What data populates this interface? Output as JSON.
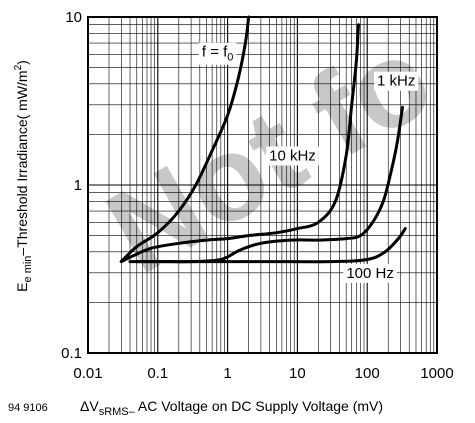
{
  "chart_data": {
    "type": "line",
    "xscale": "log",
    "yscale": "log",
    "xlim": [
      0.01,
      1000
    ],
    "ylim": [
      0.1,
      10
    ],
    "grid": true,
    "watermark_color": "#c8c8c8",
    "xlabel": "ΔVsRMS– AC Voltage on DC Supply Voltage (mV)",
    "xlabel_parts": {
      "pre": "ΔV",
      "sub": "sRMS–",
      "post": " AC Voltage on DC Supply Voltage (mV)"
    },
    "ylabel": "Ee min–Threshold Irradiance( mW/m2)",
    "ylabel_parts": {
      "pre": "E",
      "sub": "e min",
      "mid": "–Threshold Irradiance( mW/m",
      "sup": "2",
      "post": ")"
    },
    "figure_id": "94 9106",
    "watermark_text": "Not fo",
    "x_ticks": [
      {
        "value": 0.01,
        "label": "0.01"
      },
      {
        "value": 0.1,
        "label": "0.1"
      },
      {
        "value": 1,
        "label": "1"
      },
      {
        "value": 10,
        "label": "10"
      },
      {
        "value": 100,
        "label": "100"
      },
      {
        "value": 1000,
        "label": "1000"
      }
    ],
    "y_ticks": [
      {
        "value": 0.1,
        "label": "0.1"
      },
      {
        "value": 1,
        "label": "1"
      },
      {
        "value": 10,
        "label": "10"
      }
    ],
    "series": [
      {
        "name": "f = f0",
        "label_parts": {
          "pre": "f = f",
          "sub": "0"
        },
        "points": [
          [
            0.03,
            0.35
          ],
          [
            0.05,
            0.43
          ],
          [
            0.1,
            0.52
          ],
          [
            0.2,
            0.7
          ],
          [
            0.35,
            1.0
          ],
          [
            0.6,
            1.6
          ],
          [
            1.0,
            2.6
          ],
          [
            1.4,
            4.2
          ],
          [
            1.8,
            7.0
          ],
          [
            2.0,
            10
          ]
        ]
      },
      {
        "name": "10 kHz",
        "points": [
          [
            0.03,
            0.35
          ],
          [
            0.045,
            0.38
          ],
          [
            0.08,
            0.42
          ],
          [
            0.2,
            0.45
          ],
          [
            0.5,
            0.47
          ],
          [
            1.0,
            0.48
          ],
          [
            2.0,
            0.5
          ],
          [
            5.0,
            0.52
          ],
          [
            10,
            0.55
          ],
          [
            20,
            0.6
          ],
          [
            35,
            0.8
          ],
          [
            50,
            1.5
          ],
          [
            60,
            3.0
          ],
          [
            70,
            5.5
          ],
          [
            75,
            9.0
          ]
        ]
      },
      {
        "name": "1 kHz",
        "points": [
          [
            0.05,
            0.35
          ],
          [
            0.1,
            0.35
          ],
          [
            0.3,
            0.35
          ],
          [
            0.8,
            0.36
          ],
          [
            1.5,
            0.41
          ],
          [
            3.0,
            0.45
          ],
          [
            8.0,
            0.47
          ],
          [
            20,
            0.47
          ],
          [
            50,
            0.48
          ],
          [
            80,
            0.5
          ],
          [
            120,
            0.6
          ],
          [
            170,
            0.8
          ],
          [
            220,
            1.2
          ],
          [
            270,
            1.8
          ],
          [
            320,
            2.9
          ]
        ]
      },
      {
        "name": "100 Hz",
        "points": [
          [
            0.04,
            0.35
          ],
          [
            0.3,
            0.35
          ],
          [
            3.0,
            0.35
          ],
          [
            30,
            0.35
          ],
          [
            100,
            0.36
          ],
          [
            180,
            0.4
          ],
          [
            280,
            0.48
          ],
          [
            350,
            0.55
          ]
        ]
      }
    ],
    "annotations": [
      {
        "series": "f = f0",
        "text": "f = f0",
        "x": 0.72,
        "y": 5.8
      },
      {
        "series": "1 kHz",
        "text": "1 kHz",
        "x": 260,
        "y": 3.9
      },
      {
        "series": "10 kHz",
        "text": "10 kHz",
        "x": 8.5,
        "y": 1.4
      },
      {
        "series": "100 Hz",
        "text": "100 Hz",
        "x": 110,
        "y": 0.28
      }
    ]
  }
}
